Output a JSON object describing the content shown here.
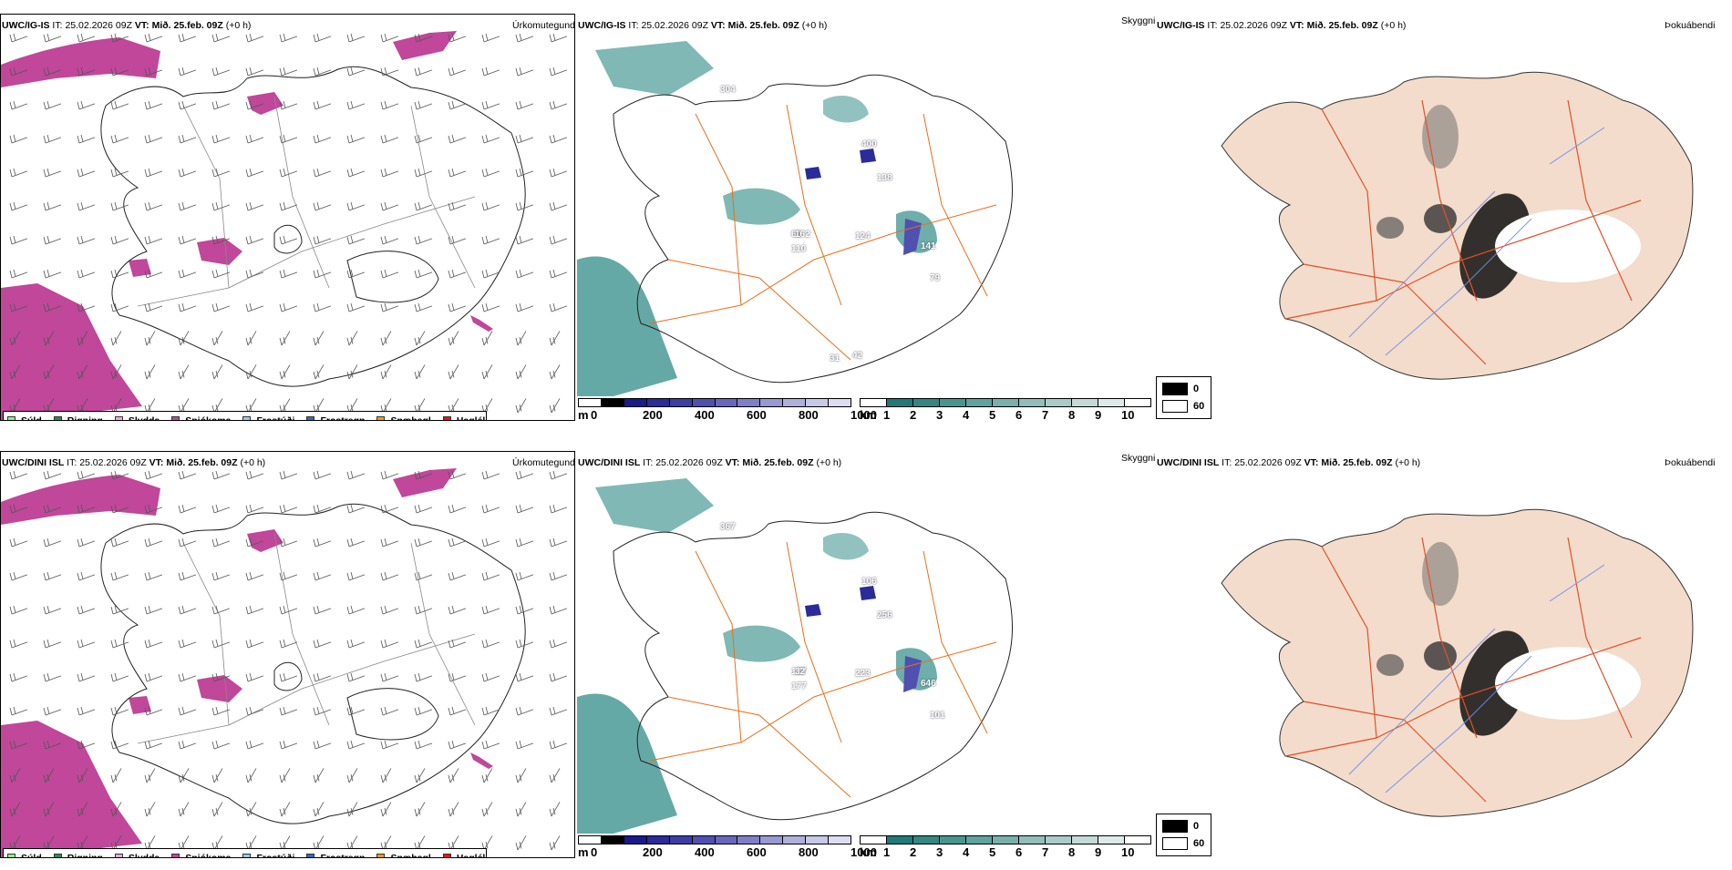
{
  "rows": [
    {
      "model": "UWC/IG-IS",
      "it_label": "IT:",
      "it_value": "25.02.2026 09Z",
      "vt_label": "VT:",
      "vt_value": "Mið. 25.feb. 09Z",
      "lead": "(+0 h)",
      "precip_field": "Úrkomutegund",
      "cloud_field": "Skyggni",
      "fog_field": "Þokuábendi",
      "cloud_values": [
        "304",
        "400",
        "138",
        "60",
        "162",
        "110",
        "124",
        "141",
        "79",
        "31",
        "42"
      ]
    },
    {
      "model": "UWC/DINI ISL",
      "it_label": "IT:",
      "it_value": "25.02.2026 09Z",
      "vt_label": "VT:",
      "vt_value": "Mið. 25.feb. 09Z",
      "lead": "(+0 h)",
      "precip_field": "Úrkomutegund",
      "cloud_field": "Skyggni",
      "fog_field": "Þokuábendi",
      "cloud_values": [
        "367",
        "106",
        "256",
        "127",
        "32",
        "177",
        "223",
        "646",
        "101"
      ]
    }
  ],
  "precip_legend": [
    {
      "label": "Súld",
      "color": "#90ee90"
    },
    {
      "label": "Rigning",
      "color": "#2e8b57"
    },
    {
      "label": "Slydda",
      "color": "#f0a8d8"
    },
    {
      "label": "Snjókoma",
      "color": "#c0479a"
    },
    {
      "label": "Frostúði",
      "color": "#9cc8f4"
    },
    {
      "label": "Frostregn",
      "color": "#2f6fb5"
    },
    {
      "label": "Snæhagl",
      "color": "#f5a000"
    },
    {
      "label": "Haglél",
      "color": "#ee1111"
    }
  ],
  "ceiling_bar": {
    "unit": "m",
    "ticks": [
      "0",
      "200",
      "400",
      "600",
      "800",
      "1000"
    ],
    "colors": [
      "#ffffff",
      "#000000",
      "#1a1a8c",
      "#2b2b9a",
      "#3d3da6",
      "#5050b0",
      "#6767bb",
      "#7f7fc6",
      "#9898d2",
      "#b0b0dc",
      "#c8c8e8",
      "#dcdcf4"
    ]
  },
  "visibility_bar": {
    "unit": "km",
    "ticks": [
      "1",
      "2",
      "3",
      "4",
      "5",
      "6",
      "7",
      "8",
      "9",
      "10"
    ],
    "colors": [
      "#ffffff",
      "#1f7a78",
      "#348783",
      "#4a948f",
      "#60a29d",
      "#78b0ab",
      "#92beba",
      "#aaccc9",
      "#c3dad8",
      "#dceae9",
      "#ffffff"
    ]
  },
  "fog_legend": [
    {
      "label": "0",
      "color": "#000000"
    },
    {
      "label": "60",
      "color": "#ffffff"
    }
  ],
  "colors": {
    "snow": "#c0479a",
    "sea_cloud": "#4a9a96",
    "land_fog": "#f3dccb",
    "roads": "#e8701a",
    "rivers": "#6e8ef0"
  }
}
